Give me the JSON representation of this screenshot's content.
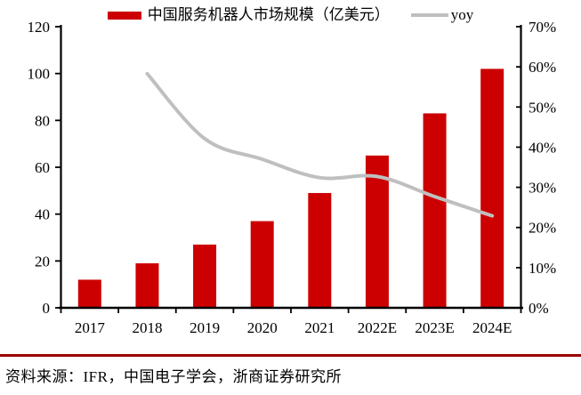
{
  "legend": {
    "bar_label": "中国服务机器人市场规模（亿美元）",
    "line_label": "yoy"
  },
  "footer": {
    "source_text": "资料来源：IFR，中国电子学会，浙商证券研究所"
  },
  "colors": {
    "bar": "#cc0000",
    "line": "#bfbfbf",
    "separator": "#990000",
    "axis": "#000000"
  },
  "chart_data": {
    "type": "bar",
    "subtype": "bar+line dual axis",
    "categories": [
      "2017",
      "2018",
      "2019",
      "2020",
      "2021",
      "2022E",
      "2023E",
      "2024E"
    ],
    "series": [
      {
        "name": "中国服务机器人市场规模（亿美元）",
        "type": "bar",
        "axis": "left",
        "values": [
          12,
          19,
          27,
          37,
          49,
          65,
          83,
          102
        ]
      },
      {
        "name": "yoy",
        "type": "line",
        "axis": "right",
        "unit": "%",
        "values": [
          null,
          58.3,
          42.1,
          37.0,
          32.4,
          32.7,
          27.7,
          22.9
        ]
      }
    ],
    "left_axis": {
      "min": 0,
      "max": 120,
      "ticks": [
        0,
        20,
        40,
        60,
        80,
        100,
        120
      ]
    },
    "right_axis": {
      "min": 0,
      "max": 70,
      "tick_step": 10,
      "tick_labels": [
        "0%",
        "10%",
        "20%",
        "30%",
        "40%",
        "50%",
        "60%",
        "70%"
      ]
    },
    "grid": false,
    "legend_position": "top",
    "line_smoothed": true
  }
}
